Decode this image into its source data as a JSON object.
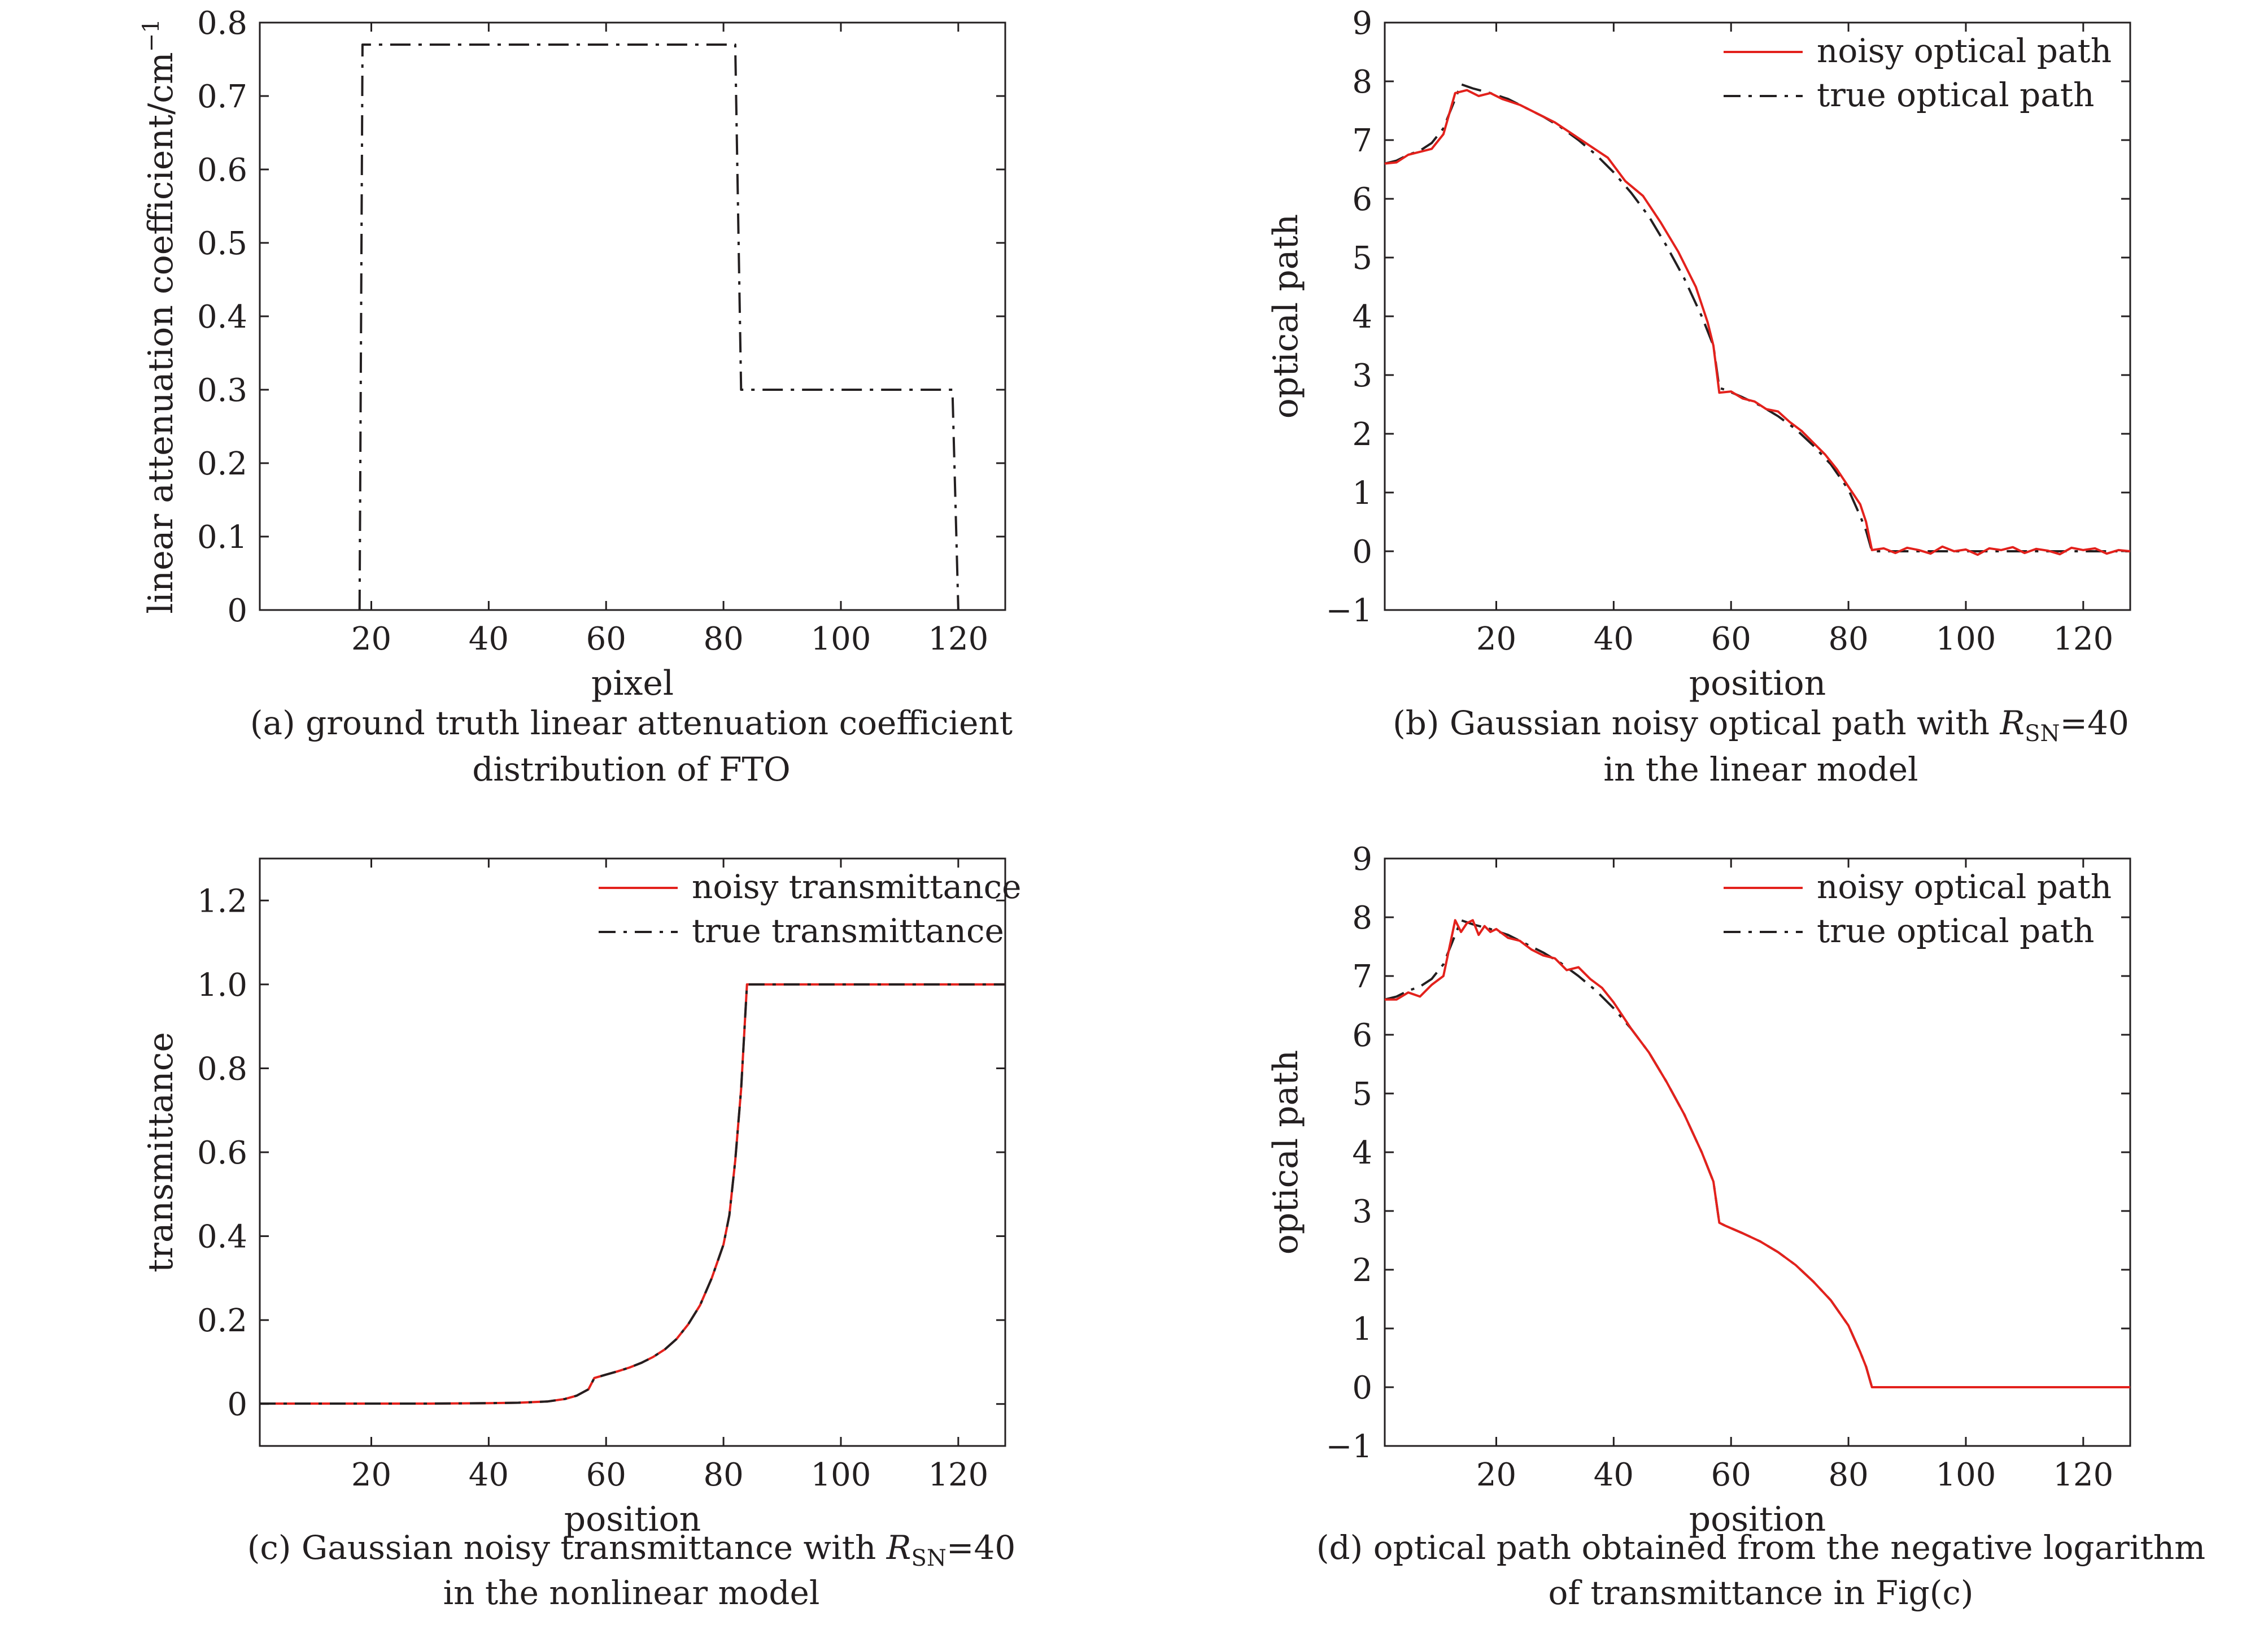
{
  "figure": {
    "panels": [
      {
        "caption_line1": "(a) ground truth linear attenuation coefficient",
        "caption_line2": "distribution of FTO"
      },
      {
        "caption_line1_pre": "(b) Gaussian noisy optical path with ",
        "caption_line1_var": "R",
        "caption_line1_sub": "SN",
        "caption_line1_post": "=40",
        "caption_line2": "in the linear model"
      },
      {
        "caption_line1_pre": "(c) Gaussian noisy transmittance with ",
        "caption_line1_var": "R",
        "caption_line1_sub": "SN",
        "caption_line1_post": "=40",
        "caption_line2": "in the nonlinear model"
      },
      {
        "caption_line1": "(d) optical path obtained from the negative logarithm",
        "caption_line2": "of transmittance in Fig(c)"
      }
    ]
  },
  "colors": {
    "noisy": "#e3211c",
    "true": "#231f20",
    "axis": "#231f20"
  },
  "chart_data": [
    {
      "type": "line",
      "xlabel": "pixel",
      "ylabel": "linear attenuation coefficient/cm",
      "ylabel_sup": "−1",
      "xlim": [
        1,
        128
      ],
      "ylim": [
        0,
        0.8
      ],
      "xticks": [
        20,
        40,
        60,
        80,
        100,
        120
      ],
      "xtick_labels": [
        "20",
        "40",
        "60",
        "80",
        "100",
        "120"
      ],
      "yticks": [
        0,
        0.1,
        0.2,
        0.3,
        0.4,
        0.5,
        0.6,
        0.7,
        0.8
      ],
      "ytick_labels": [
        "0",
        "0.1",
        "0.2",
        "0.3",
        "0.4",
        "0.5",
        "0.6",
        "0.7",
        "0.8"
      ],
      "series": [
        {
          "style": "dashdot",
          "x": [
            18,
            18.5,
            82,
            83,
            119,
            120
          ],
          "y": [
            0,
            0.77,
            0.77,
            0.3,
            0.3,
            0
          ]
        }
      ]
    },
    {
      "type": "line",
      "xlabel": "position",
      "ylabel": "optical path",
      "xlim": [
        1,
        128
      ],
      "ylim": [
        -1,
        9
      ],
      "xticks": [
        20,
        40,
        60,
        80,
        100,
        120
      ],
      "xtick_labels": [
        "20",
        "40",
        "60",
        "80",
        "100",
        "120"
      ],
      "yticks": [
        -1,
        0,
        1,
        2,
        3,
        4,
        5,
        6,
        7,
        8,
        9
      ],
      "ytick_labels": [
        "−1",
        "0",
        "1",
        "2",
        "3",
        "4",
        "5",
        "6",
        "7",
        "8",
        "9"
      ],
      "legend": {
        "position": "top-right",
        "labels": [
          "noisy optical path",
          "true optical path"
        ]
      },
      "series": [
        {
          "name": "noisy optical path",
          "style": "solid-red",
          "x": [
            1,
            3,
            5,
            7,
            9,
            11,
            13,
            15,
            17,
            19,
            21,
            24,
            27,
            30,
            33,
            36,
            39,
            42,
            45,
            48,
            51,
            54,
            56,
            57,
            58,
            60,
            62,
            64,
            66,
            68,
            70,
            72,
            74,
            76,
            78,
            80,
            82,
            83,
            84,
            86,
            88,
            90,
            92,
            94,
            96,
            98,
            100,
            102,
            104,
            106,
            108,
            110,
            112,
            114,
            116,
            118,
            120,
            122,
            124,
            126,
            128
          ],
          "y": [
            6.6,
            6.62,
            6.75,
            6.8,
            6.85,
            7.1,
            7.8,
            7.85,
            7.75,
            7.8,
            7.7,
            7.6,
            7.45,
            7.3,
            7.1,
            6.9,
            6.7,
            6.3,
            6.05,
            5.6,
            5.1,
            4.5,
            3.9,
            3.5,
            2.7,
            2.72,
            2.6,
            2.55,
            2.42,
            2.38,
            2.2,
            2.05,
            1.85,
            1.65,
            1.4,
            1.1,
            0.8,
            0.5,
            0.02,
            0.05,
            -0.03,
            0.06,
            0.02,
            -0.04,
            0.08,
            0.0,
            0.03,
            -0.06,
            0.05,
            0.02,
            0.07,
            -0.03,
            0.04,
            0.01,
            -0.05,
            0.06,
            0.02,
            0.05,
            -0.04,
            0.02,
            0.0
          ]
        },
        {
          "name": "true optical path",
          "style": "dashdot",
          "x": [
            1,
            3,
            5,
            7,
            9,
            11,
            13,
            14,
            16,
            19,
            22,
            25,
            28,
            31,
            34,
            37,
            40,
            43,
            46,
            49,
            52,
            55,
            57,
            58,
            59,
            62,
            65,
            68,
            71,
            74,
            77,
            80,
            82,
            83,
            84,
            90,
            100,
            110,
            120,
            128
          ],
          "y": [
            6.6,
            6.65,
            6.75,
            6.82,
            6.95,
            7.2,
            7.7,
            7.95,
            7.88,
            7.8,
            7.7,
            7.55,
            7.4,
            7.22,
            7.0,
            6.75,
            6.45,
            6.1,
            5.7,
            5.2,
            4.65,
            4.0,
            3.5,
            2.78,
            2.75,
            2.62,
            2.48,
            2.3,
            2.08,
            1.8,
            1.48,
            1.05,
            0.6,
            0.35,
            0.0,
            0.0,
            0.0,
            0.0,
            0.0,
            0.0
          ]
        }
      ]
    },
    {
      "type": "line",
      "xlabel": "position",
      "ylabel": "transmittance",
      "xlim": [
        1,
        128
      ],
      "ylim": [
        -0.1,
        1.3
      ],
      "xticks": [
        20,
        40,
        60,
        80,
        100,
        120
      ],
      "xtick_labels": [
        "20",
        "40",
        "60",
        "80",
        "100",
        "120"
      ],
      "yticks": [
        0,
        0.2,
        0.4,
        0.6,
        0.8,
        1.0,
        1.2
      ],
      "ytick_labels": [
        "0",
        "0.2",
        "0.4",
        "0.6",
        "0.8",
        "1.0",
        "1.2"
      ],
      "legend": {
        "position": "top-right",
        "labels": [
          "noisy transmittance",
          "true transmittance"
        ]
      },
      "series": [
        {
          "name": "noisy transmittance",
          "style": "solid-red",
          "x": [
            1,
            10,
            20,
            30,
            40,
            45,
            50,
            53,
            55,
            57,
            58,
            60,
            62,
            64,
            66,
            68,
            70,
            72,
            74,
            76,
            78,
            80,
            81,
            82,
            83,
            84,
            90,
            100,
            110,
            120,
            128
          ],
          "y": [
            0.001,
            0.001,
            0.001,
            0.001,
            0.002,
            0.003,
            0.006,
            0.012,
            0.02,
            0.035,
            0.062,
            0.07,
            0.078,
            0.087,
            0.098,
            0.112,
            0.13,
            0.155,
            0.19,
            0.235,
            0.3,
            0.38,
            0.45,
            0.58,
            0.75,
            1.0,
            1.0,
            1.0,
            1.0,
            1.0,
            1.0
          ]
        },
        {
          "name": "true transmittance",
          "style": "dashdot",
          "x": [
            1,
            10,
            20,
            30,
            40,
            45,
            50,
            53,
            55,
            57,
            58,
            60,
            62,
            64,
            66,
            68,
            70,
            72,
            74,
            76,
            78,
            80,
            81,
            82,
            83,
            84,
            90,
            100,
            110,
            120,
            128
          ],
          "y": [
            0.001,
            0.001,
            0.001,
            0.001,
            0.002,
            0.003,
            0.006,
            0.012,
            0.02,
            0.035,
            0.062,
            0.07,
            0.078,
            0.087,
            0.098,
            0.112,
            0.13,
            0.155,
            0.19,
            0.235,
            0.3,
            0.38,
            0.45,
            0.58,
            0.75,
            1.0,
            1.0,
            1.0,
            1.0,
            1.0,
            1.0
          ]
        }
      ]
    },
    {
      "type": "line",
      "xlabel": "position",
      "ylabel": "optical path",
      "xlim": [
        1,
        128
      ],
      "ylim": [
        -1,
        9
      ],
      "xticks": [
        20,
        40,
        60,
        80,
        100,
        120
      ],
      "xtick_labels": [
        "20",
        "40",
        "60",
        "80",
        "100",
        "120"
      ],
      "yticks": [
        -1,
        0,
        1,
        2,
        3,
        4,
        5,
        6,
        7,
        8,
        9
      ],
      "ytick_labels": [
        "−1",
        "0",
        "1",
        "2",
        "3",
        "4",
        "5",
        "6",
        "7",
        "8",
        "9"
      ],
      "legend": {
        "position": "top-right",
        "labels": [
          "noisy optical path",
          "true optical path"
        ]
      },
      "series": [
        {
          "name": "noisy optical path",
          "style": "solid-red",
          "x": [
            1,
            3,
            5,
            7,
            9,
            11,
            13,
            14,
            15,
            16,
            17,
            18,
            19,
            20,
            22,
            24,
            26,
            28,
            30,
            32,
            34,
            36,
            38,
            40,
            43,
            46,
            49,
            52,
            55,
            57,
            58,
            59,
            62,
            65,
            68,
            71,
            74,
            77,
            80,
            82,
            83,
            84,
            90,
            100,
            110,
            120,
            128
          ],
          "y": [
            6.6,
            6.6,
            6.72,
            6.65,
            6.85,
            7.0,
            7.95,
            7.75,
            7.9,
            7.95,
            7.7,
            7.85,
            7.75,
            7.8,
            7.65,
            7.6,
            7.45,
            7.35,
            7.3,
            7.1,
            7.15,
            6.95,
            6.8,
            6.55,
            6.1,
            5.7,
            5.2,
            4.65,
            4.0,
            3.5,
            2.8,
            2.75,
            2.62,
            2.48,
            2.3,
            2.08,
            1.8,
            1.48,
            1.05,
            0.6,
            0.35,
            0.0,
            0.0,
            0.0,
            0.0,
            0.0,
            0.0
          ]
        },
        {
          "name": "true optical path",
          "style": "dashdot",
          "x": [
            1,
            3,
            5,
            7,
            9,
            11,
            13,
            14,
            16,
            19,
            22,
            25,
            28,
            31,
            34,
            37,
            40,
            43,
            46,
            49,
            52,
            55,
            57,
            58,
            59,
            62,
            65,
            68,
            71,
            74,
            77,
            80,
            82,
            83,
            84,
            90,
            100,
            110,
            120,
            128
          ],
          "y": [
            6.6,
            6.65,
            6.75,
            6.82,
            6.95,
            7.2,
            7.7,
            7.95,
            7.88,
            7.8,
            7.7,
            7.55,
            7.4,
            7.22,
            7.0,
            6.75,
            6.45,
            6.1,
            5.7,
            5.2,
            4.65,
            4.0,
            3.5,
            2.8,
            2.75,
            2.62,
            2.48,
            2.3,
            2.08,
            1.8,
            1.48,
            1.05,
            0.6,
            0.35,
            0.0,
            0.0,
            0.0,
            0.0,
            0.0,
            0.0
          ]
        }
      ]
    }
  ]
}
